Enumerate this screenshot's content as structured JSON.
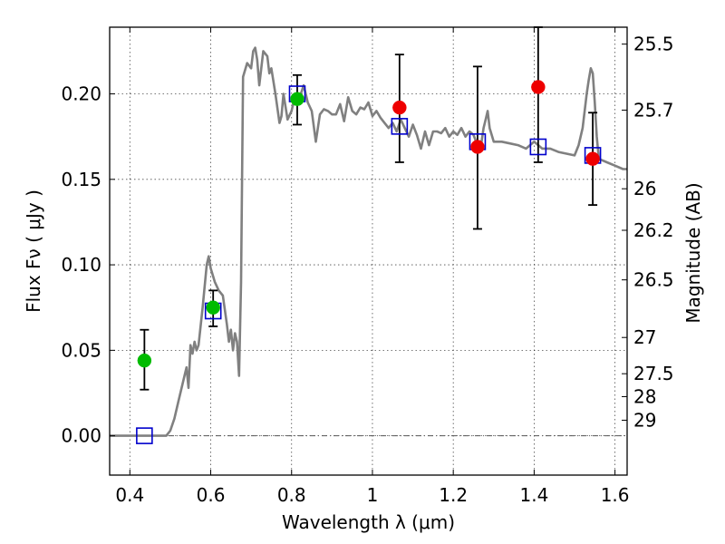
{
  "chart_data": {
    "type": "scatter",
    "xlabel": "Wavelength  λ (μm)",
    "ylabel": "Flux  Fν  ( μJy )",
    "y2label": "Magnitude (AB)",
    "xlim": [
      0.35,
      1.63
    ],
    "ylim": [
      -0.023,
      0.239
    ],
    "grid": true,
    "xticks": [
      0.4,
      0.6,
      0.8,
      1.0,
      1.2,
      1.4,
      1.6
    ],
    "xtick_labels": [
      "0.4",
      "0.6",
      "0.8",
      "1",
      "1.2",
      "1.4",
      "1.6"
    ],
    "yticks": [
      0.0,
      0.05,
      0.1,
      0.15,
      0.2
    ],
    "ytick_labels": [
      "0.00",
      "0.05",
      "0.10",
      "0.15",
      "0.20"
    ],
    "y2ticks": [
      {
        "label": "25.5",
        "flux": 0.2291
      },
      {
        "label": "25.7",
        "flux": 0.1905
      },
      {
        "label": "26",
        "flux": 0.1445
      },
      {
        "label": "26.2",
        "flux": 0.1202
      },
      {
        "label": "26.5",
        "flux": 0.0912
      },
      {
        "label": "27",
        "flux": 0.0575
      },
      {
        "label": "27.5",
        "flux": 0.0363
      },
      {
        "label": "28",
        "flux": 0.0229
      },
      {
        "label": "29",
        "flux": 0.0091
      }
    ],
    "series": [
      {
        "type": "line",
        "color": "#808080",
        "points": [
          [
            0.35,
            0.0
          ],
          [
            0.44,
            0.0
          ],
          [
            0.49,
            0.0
          ],
          [
            0.5,
            0.003
          ],
          [
            0.51,
            0.01
          ],
          [
            0.52,
            0.02
          ],
          [
            0.53,
            0.03
          ],
          [
            0.54,
            0.04
          ],
          [
            0.545,
            0.028
          ],
          [
            0.55,
            0.053
          ],
          [
            0.555,
            0.048
          ],
          [
            0.56,
            0.055
          ],
          [
            0.565,
            0.05
          ],
          [
            0.57,
            0.053
          ],
          [
            0.58,
            0.075
          ],
          [
            0.59,
            0.1
          ],
          [
            0.595,
            0.105
          ],
          [
            0.6,
            0.098
          ],
          [
            0.61,
            0.09
          ],
          [
            0.62,
            0.085
          ],
          [
            0.63,
            0.082
          ],
          [
            0.64,
            0.065
          ],
          [
            0.645,
            0.055
          ],
          [
            0.65,
            0.062
          ],
          [
            0.655,
            0.05
          ],
          [
            0.66,
            0.06
          ],
          [
            0.665,
            0.055
          ],
          [
            0.67,
            0.035
          ],
          [
            0.675,
            0.09
          ],
          [
            0.68,
            0.21
          ],
          [
            0.69,
            0.218
          ],
          [
            0.7,
            0.215
          ],
          [
            0.705,
            0.225
          ],
          [
            0.71,
            0.227
          ],
          [
            0.715,
            0.22
          ],
          [
            0.72,
            0.205
          ],
          [
            0.725,
            0.215
          ],
          [
            0.73,
            0.225
          ],
          [
            0.74,
            0.222
          ],
          [
            0.745,
            0.212
          ],
          [
            0.75,
            0.215
          ],
          [
            0.76,
            0.2
          ],
          [
            0.77,
            0.183
          ],
          [
            0.775,
            0.187
          ],
          [
            0.78,
            0.2
          ],
          [
            0.79,
            0.185
          ],
          [
            0.8,
            0.19
          ],
          [
            0.81,
            0.2
          ],
          [
            0.82,
            0.198
          ],
          [
            0.83,
            0.205
          ],
          [
            0.84,
            0.195
          ],
          [
            0.85,
            0.19
          ],
          [
            0.86,
            0.172
          ],
          [
            0.87,
            0.188
          ],
          [
            0.88,
            0.191
          ],
          [
            0.89,
            0.19
          ],
          [
            0.9,
            0.188
          ],
          [
            0.91,
            0.188
          ],
          [
            0.92,
            0.194
          ],
          [
            0.93,
            0.184
          ],
          [
            0.94,
            0.198
          ],
          [
            0.95,
            0.19
          ],
          [
            0.96,
            0.188
          ],
          [
            0.97,
            0.192
          ],
          [
            0.98,
            0.191
          ],
          [
            0.99,
            0.195
          ],
          [
            1.0,
            0.187
          ],
          [
            1.01,
            0.19
          ],
          [
            1.02,
            0.186
          ],
          [
            1.03,
            0.183
          ],
          [
            1.04,
            0.18
          ],
          [
            1.05,
            0.183
          ],
          [
            1.06,
            0.178
          ],
          [
            1.07,
            0.185
          ],
          [
            1.08,
            0.18
          ],
          [
            1.09,
            0.175
          ],
          [
            1.1,
            0.182
          ],
          [
            1.11,
            0.176
          ],
          [
            1.12,
            0.168
          ],
          [
            1.13,
            0.178
          ],
          [
            1.14,
            0.17
          ],
          [
            1.15,
            0.178
          ],
          [
            1.16,
            0.178
          ],
          [
            1.17,
            0.177
          ],
          [
            1.18,
            0.18
          ],
          [
            1.19,
            0.175
          ],
          [
            1.2,
            0.178
          ],
          [
            1.21,
            0.176
          ],
          [
            1.22,
            0.18
          ],
          [
            1.23,
            0.175
          ],
          [
            1.24,
            0.178
          ],
          [
            1.25,
            0.176
          ],
          [
            1.26,
            0.17
          ],
          [
            1.27,
            0.172
          ],
          [
            1.275,
            0.18
          ],
          [
            1.28,
            0.185
          ],
          [
            1.285,
            0.19
          ],
          [
            1.29,
            0.18
          ],
          [
            1.3,
            0.172
          ],
          [
            1.32,
            0.172
          ],
          [
            1.34,
            0.171
          ],
          [
            1.36,
            0.17
          ],
          [
            1.38,
            0.168
          ],
          [
            1.4,
            0.172
          ],
          [
            1.42,
            0.168
          ],
          [
            1.44,
            0.168
          ],
          [
            1.46,
            0.166
          ],
          [
            1.48,
            0.165
          ],
          [
            1.5,
            0.164
          ],
          [
            1.51,
            0.17
          ],
          [
            1.52,
            0.18
          ],
          [
            1.53,
            0.2
          ],
          [
            1.535,
            0.208
          ],
          [
            1.54,
            0.215
          ],
          [
            1.545,
            0.212
          ],
          [
            1.55,
            0.195
          ],
          [
            1.555,
            0.175
          ],
          [
            1.56,
            0.162
          ],
          [
            1.58,
            0.16
          ],
          [
            1.6,
            0.158
          ],
          [
            1.62,
            0.156
          ],
          [
            1.63,
            0.156
          ]
        ]
      },
      {
        "type": "errorbar",
        "color": "#000000",
        "bars": [
          {
            "x": 0.436,
            "low": 0.027,
            "high": 0.062
          },
          {
            "x": 0.606,
            "low": 0.064,
            "high": 0.085
          },
          {
            "x": 0.814,
            "low": 0.182,
            "high": 0.211
          },
          {
            "x": 1.067,
            "low": 0.16,
            "high": 0.223
          },
          {
            "x": 1.26,
            "low": 0.121,
            "high": 0.216
          },
          {
            "x": 1.41,
            "low": 0.16,
            "high": 0.239
          },
          {
            "x": 1.545,
            "low": 0.135,
            "high": 0.189
          }
        ]
      },
      {
        "type": "scatter",
        "marker": "square-open",
        "color": "#0000cc",
        "points": [
          [
            0.436,
            0.0
          ],
          [
            0.606,
            0.073
          ],
          [
            0.814,
            0.2
          ],
          [
            1.067,
            0.181
          ],
          [
            1.26,
            0.172
          ],
          [
            1.41,
            0.169
          ],
          [
            1.545,
            0.164
          ]
        ]
      },
      {
        "type": "scatter",
        "marker": "circle",
        "color": "#00bb00",
        "points": [
          [
            0.436,
            0.044
          ],
          [
            0.606,
            0.075
          ],
          [
            0.814,
            0.197
          ]
        ]
      },
      {
        "type": "scatter",
        "marker": "circle",
        "color": "#ee0000",
        "points": [
          [
            1.067,
            0.192
          ],
          [
            1.26,
            0.169
          ],
          [
            1.41,
            0.204
          ],
          [
            1.545,
            0.162
          ]
        ]
      }
    ]
  }
}
